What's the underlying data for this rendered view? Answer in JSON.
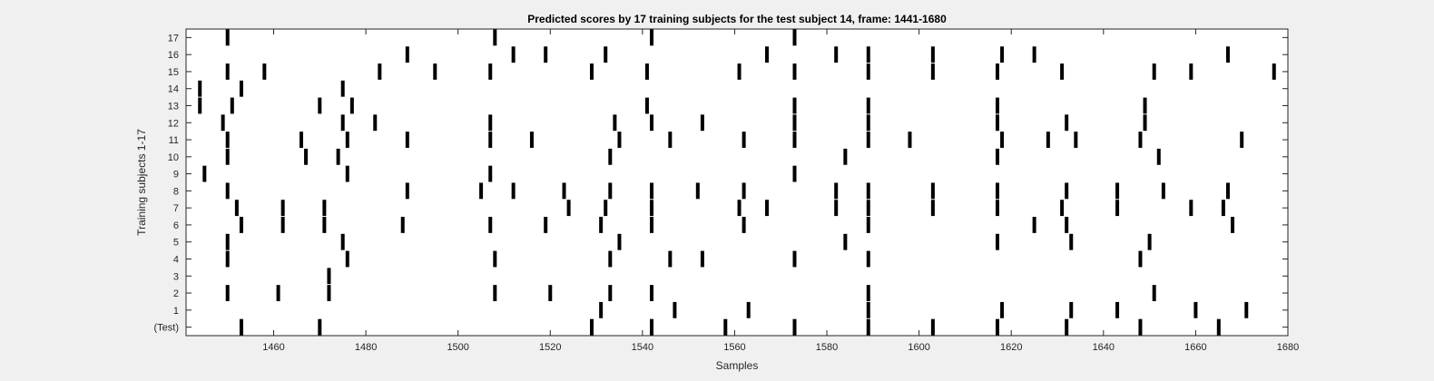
{
  "chart_data": {
    "type": "raster",
    "title": "Predicted scores by 17 training subjects for the test subject 14, frame: 1441-1680",
    "xlabel": "Samples",
    "ylabel": "Training subjects 1-17",
    "xlim": [
      1441,
      1680
    ],
    "xticks": [
      1460,
      1480,
      1500,
      1520,
      1540,
      1560,
      1580,
      1600,
      1620,
      1640,
      1660,
      1680
    ],
    "row_labels": [
      "(Test)",
      "1",
      "2",
      "3",
      "4",
      "5",
      "6",
      "7",
      "8",
      "9",
      "10",
      "11",
      "12",
      "13",
      "14",
      "15",
      "16",
      "17"
    ],
    "grid": false,
    "rows": [
      {
        "label": "(Test)",
        "events": [
          1453,
          1470,
          1529,
          1542,
          1558,
          1573,
          1589,
          1603,
          1617,
          1632,
          1648,
          1665
        ]
      },
      {
        "label": "1",
        "events": [
          1531,
          1547,
          1563,
          1589,
          1618,
          1633,
          1643,
          1660,
          1671
        ]
      },
      {
        "label": "2",
        "events": [
          1450,
          1461,
          1472,
          1508,
          1520,
          1533,
          1542,
          1589,
          1651
        ]
      },
      {
        "label": "3",
        "events": [
          1472
        ]
      },
      {
        "label": "4",
        "events": [
          1450,
          1476,
          1508,
          1533,
          1546,
          1553,
          1573,
          1589,
          1648
        ]
      },
      {
        "label": "5",
        "events": [
          1450,
          1475,
          1535,
          1584,
          1617,
          1633,
          1650
        ]
      },
      {
        "label": "6",
        "events": [
          1453,
          1462,
          1471,
          1488,
          1507,
          1519,
          1531,
          1542,
          1562,
          1589,
          1625,
          1632,
          1668
        ]
      },
      {
        "label": "7",
        "events": [
          1452,
          1462,
          1471,
          1524,
          1532,
          1542,
          1561,
          1567,
          1582,
          1589,
          1603,
          1617,
          1631,
          1643,
          1659,
          1666
        ]
      },
      {
        "label": "8",
        "events": [
          1450,
          1489,
          1505,
          1512,
          1523,
          1533,
          1542,
          1552,
          1562,
          1582,
          1589,
          1603,
          1617,
          1632,
          1643,
          1653,
          1667
        ]
      },
      {
        "label": "9",
        "events": [
          1445,
          1476,
          1507,
          1573
        ]
      },
      {
        "label": "10",
        "events": [
          1450,
          1467,
          1474,
          1533,
          1584,
          1617,
          1652
        ]
      },
      {
        "label": "11",
        "events": [
          1450,
          1466,
          1476,
          1489,
          1507,
          1516,
          1535,
          1546,
          1562,
          1573,
          1589,
          1598,
          1618,
          1628,
          1634,
          1648,
          1670
        ]
      },
      {
        "label": "12",
        "events": [
          1449,
          1475,
          1482,
          1507,
          1534,
          1542,
          1553,
          1573,
          1589,
          1617,
          1632,
          1649
        ]
      },
      {
        "label": "13",
        "events": [
          1444,
          1451,
          1470,
          1477,
          1541,
          1573,
          1589,
          1617,
          1649
        ]
      },
      {
        "label": "14",
        "events": [
          1444,
          1453,
          1475
        ]
      },
      {
        "label": "15",
        "events": [
          1450,
          1458,
          1483,
          1495,
          1507,
          1529,
          1541,
          1561,
          1573,
          1589,
          1603,
          1617,
          1631,
          1651,
          1659,
          1677
        ]
      },
      {
        "label": "16",
        "events": [
          1489,
          1512,
          1519,
          1532,
          1567,
          1582,
          1589,
          1603,
          1618,
          1625,
          1667
        ]
      },
      {
        "label": "17",
        "events": [
          1450,
          1508,
          1542,
          1573
        ]
      }
    ]
  }
}
